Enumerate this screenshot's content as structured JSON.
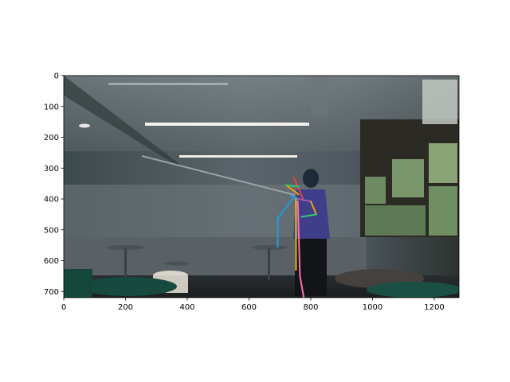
{
  "chart_data": {
    "type": "scatter",
    "title": "",
    "xlabel": "",
    "ylabel": "",
    "xlim": [
      0,
      1280
    ],
    "ylim": [
      720,
      0
    ],
    "grid": false,
    "legend": "none",
    "background_image": {
      "content": "indoor room with whiteboard wall, ceiling lights, windows on right, person standing at center",
      "tone": "dim, dark-blue tinted"
    },
    "x_ticks": [
      0,
      200,
      400,
      600,
      800,
      1000,
      1200
    ],
    "y_ticks": [
      0,
      100,
      200,
      300,
      400,
      500,
      600,
      700
    ],
    "skeleton_segments": [
      {
        "color": "#e8443a",
        "from": [
          745,
          330
        ],
        "to": [
          775,
          400
        ]
      },
      {
        "color": "#f39c12",
        "from": [
          720,
          355
        ],
        "to": [
          760,
          385
        ]
      },
      {
        "color": "#2ecc71",
        "from": [
          720,
          355
        ],
        "to": [
          760,
          360
        ]
      },
      {
        "color": "#3498db",
        "from": [
          735,
          390
        ],
        "to": [
          760,
          400
        ]
      },
      {
        "color": "#1f9de0",
        "from": [
          695,
          460
        ],
        "to": [
          745,
          395
        ]
      },
      {
        "color": "#1f9de0",
        "from": [
          693,
          460
        ],
        "to": [
          693,
          555
        ]
      },
      {
        "color": "#9b59b6",
        "from": [
          760,
          400
        ],
        "to": [
          800,
          408
        ]
      },
      {
        "color": "#f39c12",
        "from": [
          800,
          408
        ],
        "to": [
          818,
          450
        ]
      },
      {
        "color": "#2ecc71",
        "from": [
          818,
          450
        ],
        "to": [
          770,
          458
        ]
      },
      {
        "color": "#f1c40f",
        "from": [
          752,
          400
        ],
        "to": [
          752,
          630
        ]
      },
      {
        "color": "#ff6fb0",
        "from": [
          758,
          408
        ],
        "to": [
          765,
          650
        ]
      },
      {
        "color": "#ff6fb0",
        "from": [
          765,
          650
        ],
        "to": [
          780,
          735
        ]
      }
    ]
  }
}
